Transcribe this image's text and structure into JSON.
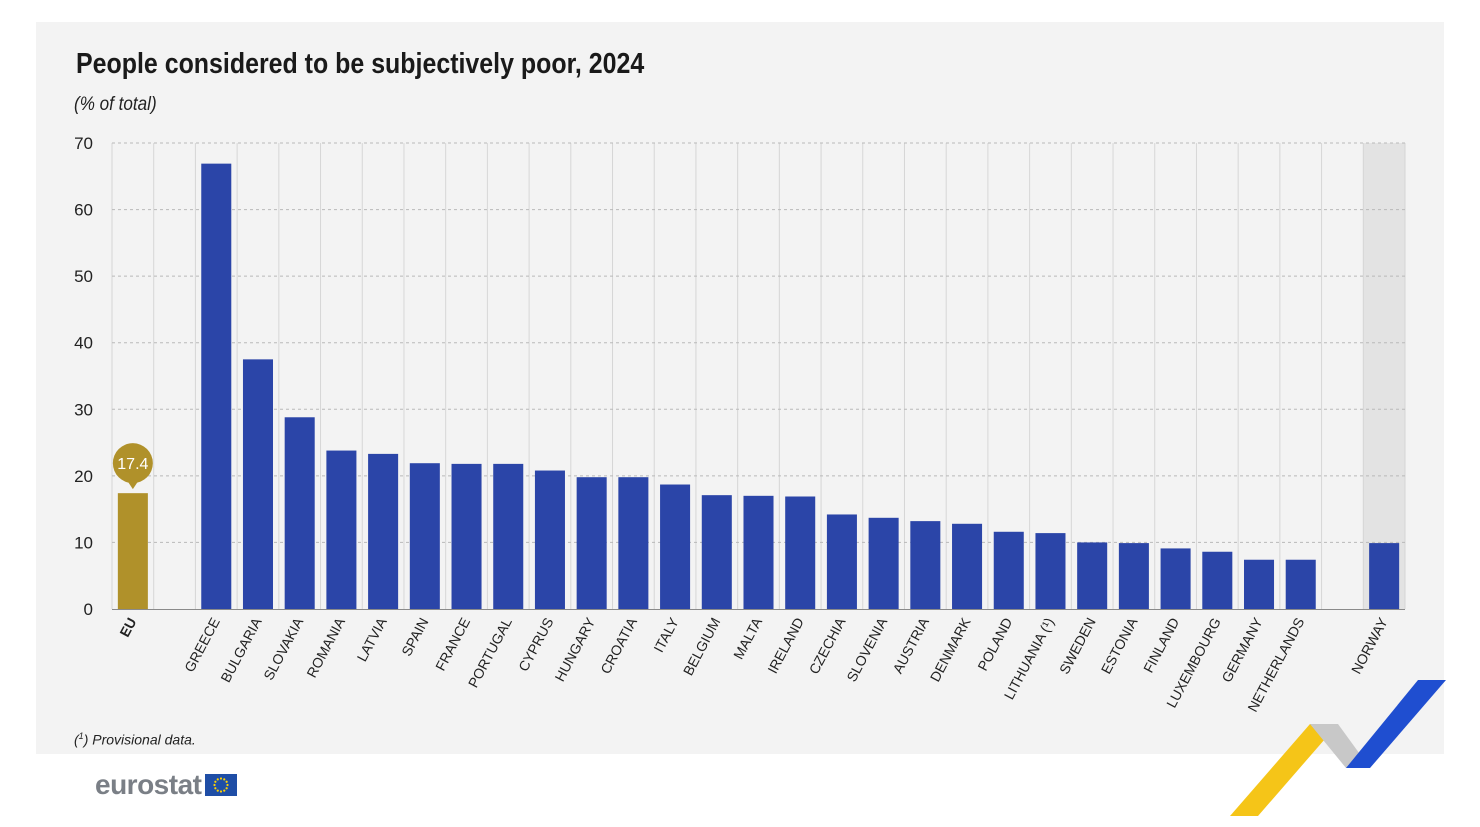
{
  "title": "People considered to be subjectively poor, 2024",
  "subtitle": "(% of total)",
  "footnote_marker": "1",
  "footnote_text": "Provisional data.",
  "logo_text": "eurostat",
  "colors": {
    "eu_bar": "#b0912a",
    "bar": "#2b45a8",
    "panel_bg": "#f3f3f3",
    "highlight_bg": "#e3e3e3",
    "logo_text": "#7a7f86",
    "flag_blue": "#1f4ea6",
    "flag_star": "#ffd200",
    "corner_yellow": "#f5c518",
    "corner_blue": "#1f4ed0",
    "corner_grey": "#c8c8c8"
  },
  "chart_data": {
    "type": "bar",
    "ylim": [
      0,
      70
    ],
    "yticks": [
      0,
      10,
      20,
      30,
      40,
      50,
      60,
      70
    ],
    "grid": true,
    "highlighted_category": "NORWAY",
    "eu_value_label": "17.4",
    "categories": [
      "EU",
      "GREECE",
      "BULGARIA",
      "SLOVAKIA",
      "ROMANIA",
      "LATVIA",
      "SPAIN",
      "FRANCE",
      "PORTUGAL",
      "CYPRUS",
      "HUNGARY",
      "CROATIA",
      "ITALY",
      "BELGIUM",
      "MALTA",
      "IRELAND",
      "CZECHIA",
      "SLOVENIA",
      "AUSTRIA",
      "DENMARK",
      "POLAND",
      "LITHUANIA (¹)",
      "SWEDEN",
      "ESTONIA",
      "FINLAND",
      "LUXEMBOURG",
      "GERMANY",
      "NETHERLANDS",
      "NORWAY"
    ],
    "values": [
      17.4,
      66.9,
      37.5,
      28.8,
      23.8,
      23.3,
      21.9,
      21.8,
      21.8,
      20.8,
      19.8,
      19.8,
      18.7,
      17.1,
      17.0,
      16.9,
      14.2,
      13.7,
      13.2,
      12.8,
      11.6,
      11.4,
      10.0,
      9.9,
      9.1,
      8.6,
      7.4,
      7.4,
      9.9
    ]
  }
}
